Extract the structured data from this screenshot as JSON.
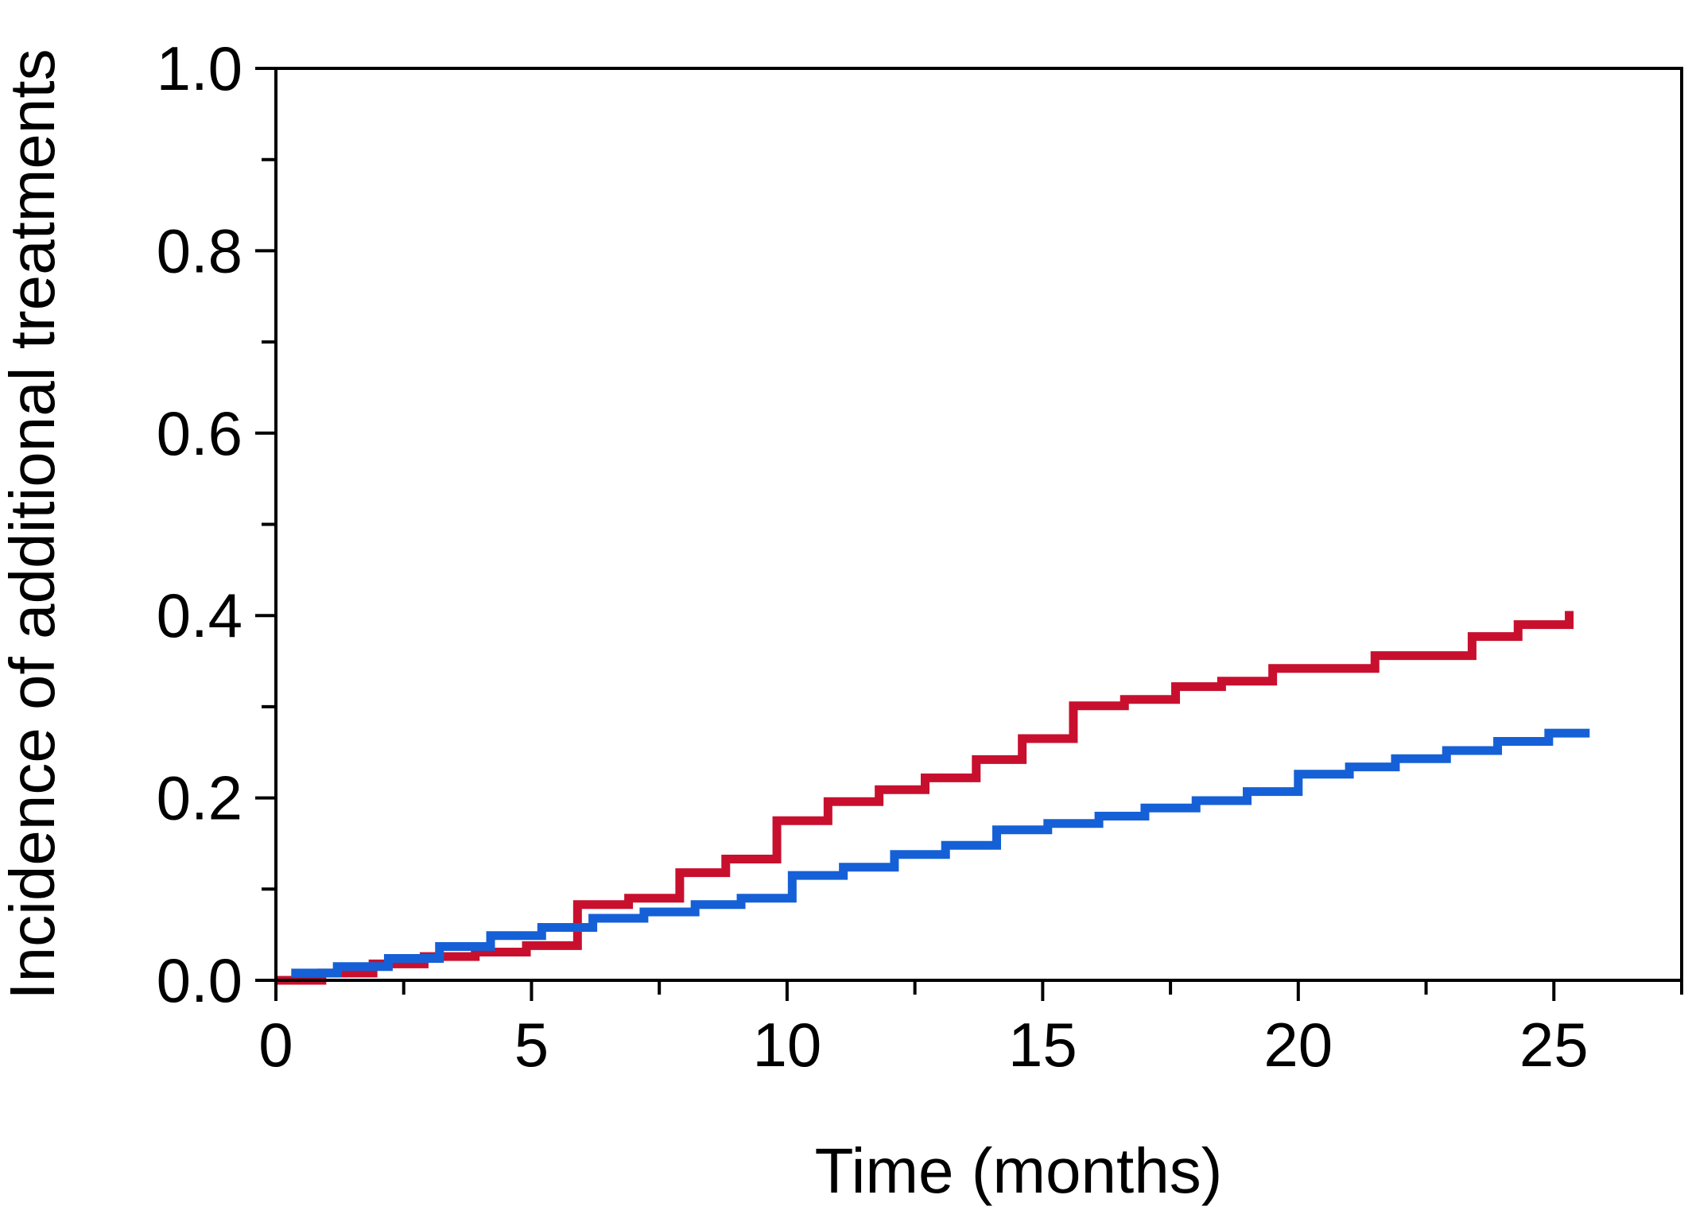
{
  "chart_data": {
    "type": "line",
    "step": true,
    "title": "",
    "xlabel": "Time (months)",
    "ylabel": "Incidence of additional treatments",
    "xlim": [
      0,
      27.5
    ],
    "ylim": [
      0,
      1.0
    ],
    "x_ticks_major": [
      0,
      5,
      10,
      15,
      20,
      25
    ],
    "x_tick_labels": [
      "0",
      "5",
      "10",
      "15",
      "20",
      "25"
    ],
    "x_ticks_minor": [
      2.5,
      7.5,
      12.5,
      17.5,
      22.5,
      27.5
    ],
    "y_ticks_major": [
      0.0,
      0.2,
      0.4,
      0.6,
      0.8,
      1.0
    ],
    "y_tick_labels": [
      "0.0",
      "0.2",
      "0.4",
      "0.6",
      "0.8",
      "1.0"
    ],
    "y_ticks_minor": [
      0.1,
      0.3,
      0.5,
      0.7,
      0.9
    ],
    "grid": false,
    "legend": "none",
    "series": [
      {
        "color": "#c8102e",
        "x": [
          0,
          0.9,
          1.9,
          2.9,
          3.9,
          4.9,
          5.9,
          6.9,
          7.9,
          8.8,
          9.8,
          10.8,
          11.8,
          12.7,
          13.7,
          14.6,
          15.6,
          16.6,
          17.6,
          18.5,
          19.5,
          20.5,
          21.5,
          22.4,
          23.4,
          24.3,
          25.3
        ],
        "y": [
          0.0,
          0.008,
          0.018,
          0.026,
          0.031,
          0.038,
          0.083,
          0.09,
          0.118,
          0.133,
          0.175,
          0.196,
          0.209,
          0.222,
          0.242,
          0.265,
          0.301,
          0.308,
          0.322,
          0.328,
          0.342,
          0.342,
          0.356,
          0.356,
          0.377,
          0.39,
          0.405
        ],
        "end_x": 25.3
      },
      {
        "color": "#1560d6",
        "x": [
          0.3,
          1.2,
          2.2,
          3.2,
          4.2,
          5.2,
          6.2,
          7.2,
          8.2,
          9.1,
          10.1,
          11.1,
          12.1,
          13.1,
          14.1,
          15.1,
          16.1,
          17.0,
          18.0,
          19.0,
          20.0,
          21.0,
          21.9,
          22.9,
          23.9,
          24.9
        ],
        "y": [
          0.008,
          0.015,
          0.024,
          0.037,
          0.049,
          0.058,
          0.068,
          0.075,
          0.083,
          0.09,
          0.115,
          0.124,
          0.138,
          0.148,
          0.165,
          0.172,
          0.18,
          0.189,
          0.197,
          0.207,
          0.226,
          0.234,
          0.243,
          0.252,
          0.262,
          0.271
        ],
        "end_x": 25.7
      }
    ]
  }
}
